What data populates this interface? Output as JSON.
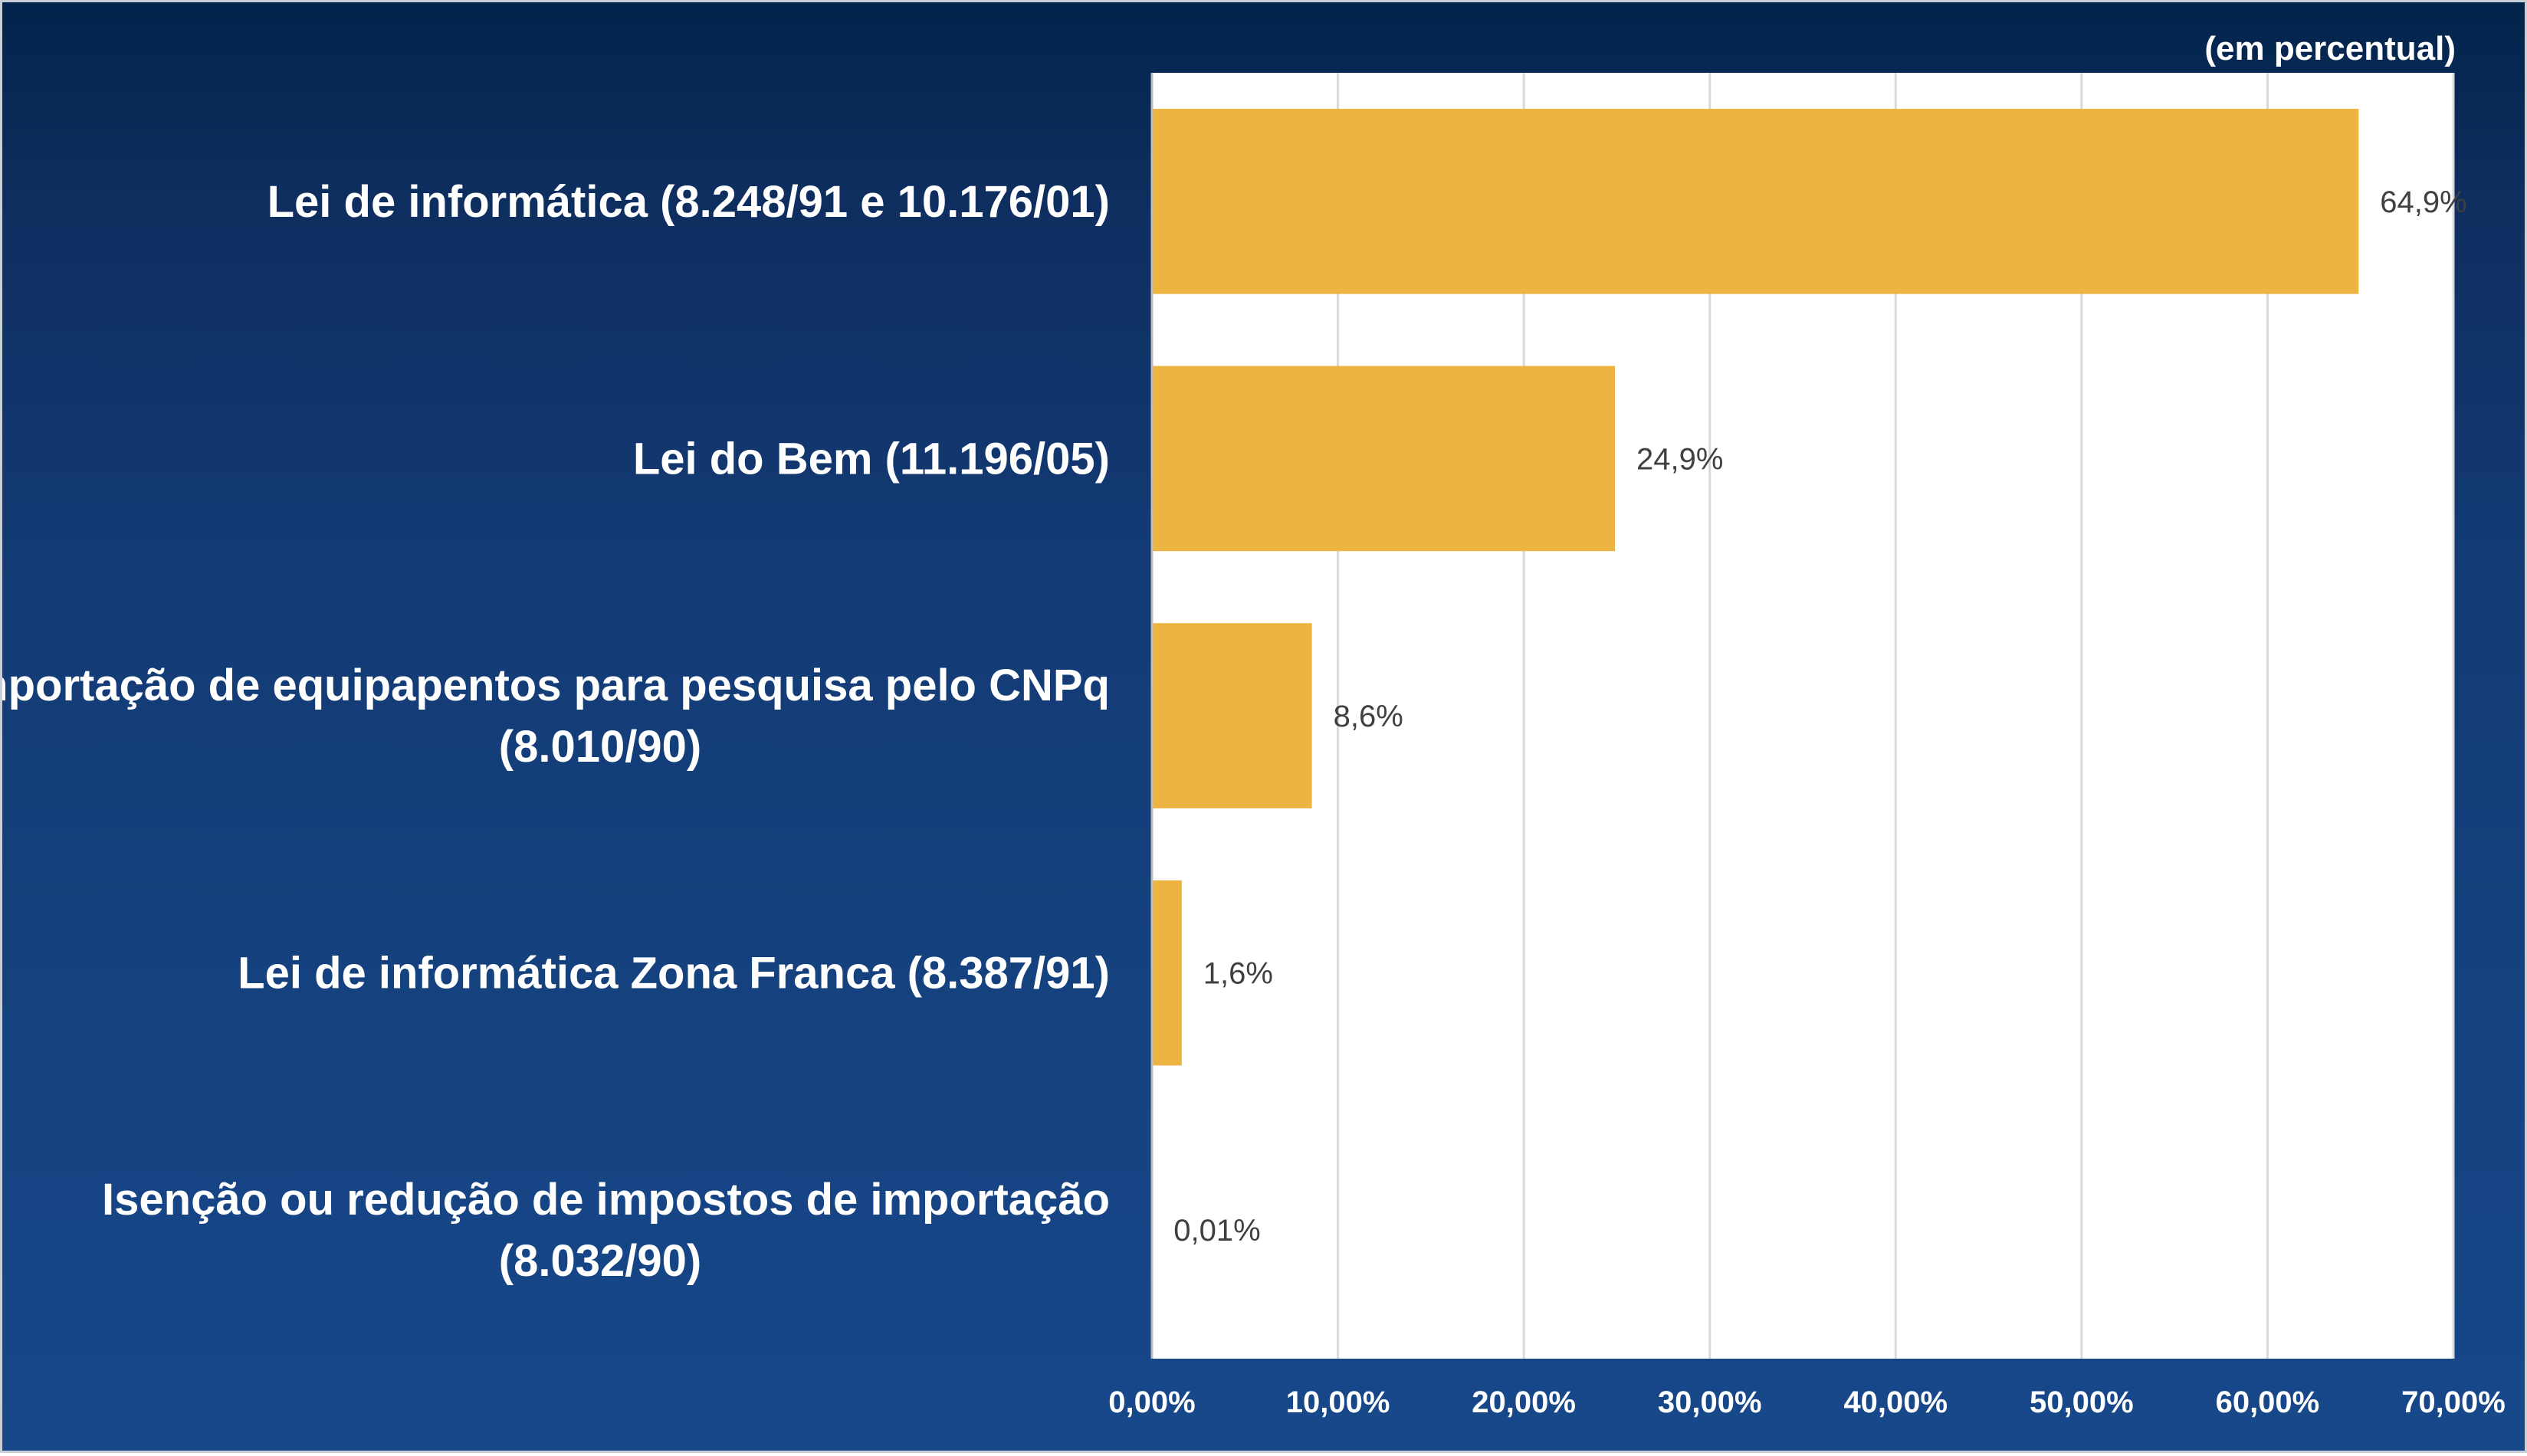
{
  "unit_note": "(em percentual)",
  "colors": {
    "bar": "#EDB441",
    "plot_background": "#FFFFFF",
    "gridline": "#D9D9D9",
    "label_text": "#FFFFFF",
    "data_label_text": "#404040"
  },
  "chart_data": {
    "type": "bar",
    "orientation": "horizontal",
    "categories": [
      [
        "Lei de informática (8.248/91 e 10.176/01)"
      ],
      [
        "Lei do Bem (11.196/05)"
      ],
      [
        "Importação de equipapentos para pesquisa pelo CNPq",
        "(8.010/90)"
      ],
      [
        "Lei de informática Zona Franca (8.387/91)"
      ],
      [
        "Isenção ou redução de impostos de importação",
        "(8.032/90)"
      ]
    ],
    "values": [
      64.9,
      24.9,
      8.6,
      1.6,
      0.01
    ],
    "data_labels": [
      "64,9%",
      "24,9%",
      "8,6%",
      "1,6%",
      "0,01%"
    ],
    "x_ticks": [
      0,
      10,
      20,
      30,
      40,
      50,
      60,
      70
    ],
    "x_tick_labels": [
      "0,00%",
      "10,00%",
      "20,00%",
      "30,00%",
      "40,00%",
      "50,00%",
      "60,00%",
      "70,00%"
    ],
    "xlim": [
      0,
      70
    ],
    "grid": true,
    "legend": "none"
  }
}
